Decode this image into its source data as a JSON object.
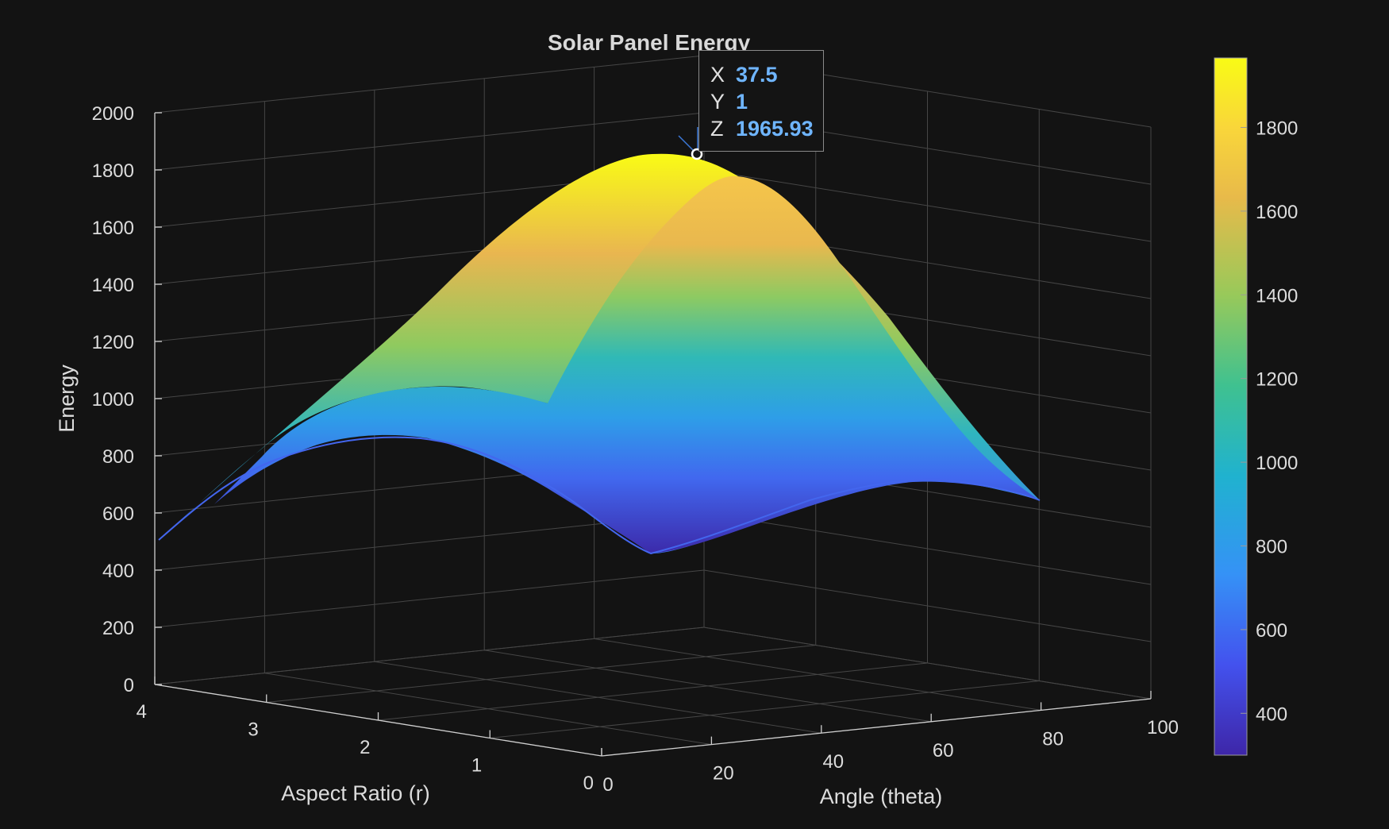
{
  "chart_data": {
    "type": "surface",
    "title": "Solar Panel Energy",
    "xlabel": "Angle (theta)",
    "ylabel": "Aspect Ratio (r)",
    "zlabel": "Energy",
    "x_ticks": [
      0,
      20,
      40,
      60,
      80,
      100
    ],
    "y_ticks": [
      0,
      1,
      2,
      3,
      4
    ],
    "z_ticks": [
      0,
      200,
      400,
      600,
      800,
      1000,
      1200,
      1400,
      1600,
      1800,
      2000
    ],
    "colorbar_ticks": [
      400,
      600,
      800,
      1000,
      1200,
      1400,
      1600,
      1800
    ],
    "colorbar_range": [
      300,
      1966
    ],
    "xlim": [
      0,
      100
    ],
    "ylim": [
      0,
      4
    ],
    "zlim": [
      0,
      2000
    ],
    "grid": true,
    "colormap": [
      "#3e26a8",
      "#4352ee",
      "#3592f6",
      "#20b2cf",
      "#3fc190",
      "#98c95a",
      "#e8ba4a",
      "#f9d63a",
      "#f9fb15"
    ],
    "surface_profile": [
      {
        "y": 0,
        "x": [
          0,
          37.5,
          75
        ],
        "z": [
          840,
          1965.93,
          1045
        ]
      },
      {
        "y": 1,
        "x": [
          0,
          37.5,
          75
        ],
        "z": [
          1085,
          1965.93,
          1045
        ]
      },
      {
        "y": 2,
        "x": [
          0,
          37.5,
          75
        ],
        "z": [
          960,
          1250,
          950
        ]
      },
      {
        "y": 3,
        "x": [
          0,
          37.5,
          75
        ],
        "z": [
          820,
          1020,
          810
        ]
      },
      {
        "y": 4,
        "x": [
          0,
          37.5,
          75
        ],
        "z": [
          500,
          640,
          500
        ]
      }
    ],
    "datatip": {
      "x_label": "X",
      "x": "37.5",
      "y_label": "Y",
      "y": "1",
      "z_label": "Z",
      "z": "1965.93"
    }
  },
  "colors": {
    "background": "#131313",
    "grid": "#4a4a4a",
    "axis": "#cfcfcf",
    "text": "#dcdcdc",
    "tip_value": "#6fb5ff"
  }
}
